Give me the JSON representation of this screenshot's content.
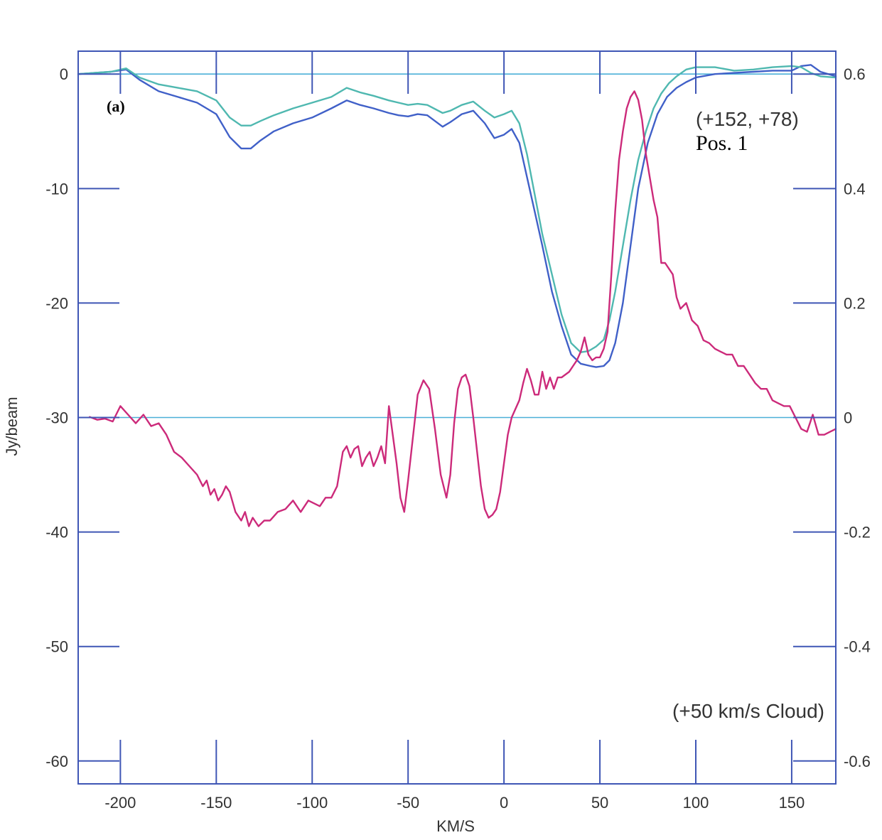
{
  "chart_data": {
    "type": "line",
    "panel_label": "(a)",
    "annotations": {
      "position": "(+152, +78)",
      "position_name": "Pos. 1",
      "cloud": "(+50 km/s Cloud)"
    },
    "xlabel": "KM/S",
    "ylabel": "Jy/beam",
    "xlim": [
      -222,
      173
    ],
    "ylim": [
      -62,
      2
    ],
    "y2lim": [
      -0.64,
      0.64
    ],
    "xticks": [
      -200,
      -150,
      -100,
      -50,
      0,
      50,
      100,
      150
    ],
    "xtick_labels": [
      "-200",
      "-150",
      "-100",
      "-50",
      "0",
      "50",
      "100",
      "150"
    ],
    "yticks": [
      0,
      -10,
      -20,
      -30,
      -40,
      -50,
      -60
    ],
    "ytick_labels": [
      "0",
      "-10",
      "-20",
      "-30",
      "-40",
      "-50",
      "-60"
    ],
    "y2ticks": [
      0.6,
      0.4,
      0.2,
      0,
      -0.2,
      -0.4,
      -0.6
    ],
    "y2tick_labels": [
      "0.6",
      "0.4",
      "0.2",
      "0",
      "-0.2",
      "-0.4",
      "-0.6"
    ],
    "reference_lines": [
      {
        "axis": "left",
        "y": 0
      },
      {
        "axis": "left",
        "y": -30
      }
    ],
    "grid": false,
    "colors": {
      "frame": "#3f56b5",
      "reference": "#4bb0d8",
      "blue_series": "#4060c8",
      "teal_series": "#4fb8b0",
      "magenta_series": "#cc2a7a"
    },
    "series": [
      {
        "color": "blue",
        "axis": "left",
        "x": [
          -222,
          -205,
          -197,
          -190,
          -180,
          -170,
          -160,
          -150,
          -143,
          -137,
          -132,
          -127,
          -120,
          -110,
          -100,
          -90,
          -82,
          -75,
          -68,
          -60,
          -55,
          -50,
          -45,
          -40,
          -32,
          -28,
          -22,
          -16,
          -10,
          -5,
          0,
          4,
          8,
          12,
          16,
          20,
          25,
          30,
          35,
          40,
          45,
          48,
          52,
          55,
          58,
          62,
          66,
          70,
          75,
          80,
          85,
          90,
          95,
          100,
          110,
          120,
          130,
          140,
          150,
          155,
          160,
          165,
          173
        ],
        "y": [
          0,
          0.2,
          0.4,
          -0.5,
          -1.5,
          -2,
          -2.5,
          -3.5,
          -5.5,
          -6.5,
          -6.5,
          -5.8,
          -5,
          -4.3,
          -3.8,
          -3,
          -2.3,
          -2.7,
          -3,
          -3.4,
          -3.6,
          -3.7,
          -3.5,
          -3.6,
          -4.6,
          -4.2,
          -3.5,
          -3.2,
          -4.3,
          -5.6,
          -5.3,
          -4.8,
          -6,
          -9,
          -12,
          -15,
          -19,
          -22,
          -24.5,
          -25.3,
          -25.5,
          -25.6,
          -25.5,
          -25,
          -23.5,
          -20,
          -15,
          -10,
          -6,
          -3.5,
          -2,
          -1.2,
          -0.7,
          -0.3,
          0,
          0.1,
          0.2,
          0.3,
          0.3,
          0.7,
          0.8,
          0.2,
          -0.2
        ]
      },
      {
        "color": "teal",
        "axis": "left",
        "x": [
          -222,
          -205,
          -197,
          -190,
          -180,
          -170,
          -160,
          -150,
          -143,
          -137,
          -132,
          -127,
          -120,
          -110,
          -100,
          -90,
          -82,
          -75,
          -68,
          -60,
          -55,
          -50,
          -45,
          -40,
          -32,
          -28,
          -22,
          -16,
          -10,
          -5,
          0,
          4,
          8,
          12,
          16,
          20,
          25,
          30,
          35,
          40,
          44,
          48,
          52,
          55,
          58,
          62,
          66,
          70,
          74,
          78,
          82,
          86,
          90,
          95,
          100,
          110,
          120,
          130,
          140,
          150,
          155,
          160,
          165,
          173
        ],
        "y": [
          0,
          0.2,
          0.5,
          -0.3,
          -0.9,
          -1.2,
          -1.5,
          -2.3,
          -3.8,
          -4.5,
          -4.5,
          -4.1,
          -3.6,
          -3,
          -2.5,
          -2,
          -1.2,
          -1.6,
          -1.9,
          -2.3,
          -2.5,
          -2.7,
          -2.6,
          -2.7,
          -3.4,
          -3.2,
          -2.7,
          -2.4,
          -3.2,
          -3.8,
          -3.5,
          -3.2,
          -4.3,
          -7,
          -10.5,
          -14,
          -17.5,
          -21,
          -23.5,
          -24.3,
          -24.2,
          -23.8,
          -23.2,
          -21.5,
          -19,
          -15,
          -11,
          -7.5,
          -5,
          -3,
          -1.7,
          -0.8,
          -0.2,
          0.4,
          0.6,
          0.6,
          0.3,
          0.4,
          0.6,
          0.7,
          0.6,
          0.1,
          -0.2,
          -0.3
        ]
      },
      {
        "color": "magenta",
        "axis": "right",
        "x": [
          -216,
          -212,
          -208,
          -204,
          -200,
          -196,
          -192,
          -188,
          -184,
          -180,
          -176,
          -172,
          -168,
          -164,
          -160,
          -157,
          -155,
          -153,
          -151,
          -149,
          -147,
          -145,
          -143,
          -140,
          -137,
          -135,
          -133,
          -131,
          -128,
          -125,
          -122,
          -118,
          -114,
          -110,
          -106,
          -102,
          -99,
          -96,
          -93,
          -90,
          -87,
          -84,
          -82,
          -80,
          -78,
          -76,
          -74,
          -72,
          -70,
          -68,
          -66,
          -64,
          -62,
          -60,
          -58,
          -56,
          -54,
          -52,
          -50,
          -48,
          -45,
          -42,
          -39,
          -36,
          -33,
          -30,
          -28,
          -26,
          -24,
          -22,
          -20,
          -18,
          -16,
          -14,
          -12,
          -10,
          -8,
          -6,
          -4,
          -2,
          0,
          2,
          4,
          6,
          8,
          10,
          12,
          14,
          16,
          18,
          20,
          22,
          24,
          26,
          28,
          30,
          32,
          34,
          36,
          38,
          40,
          42,
          44,
          46,
          48,
          50,
          52,
          54,
          56,
          58,
          60,
          62,
          64,
          66,
          68,
          70,
          72,
          74,
          76,
          78,
          80,
          82,
          84,
          86,
          88,
          90,
          92,
          95,
          98,
          101,
          104,
          107,
          110,
          113,
          116,
          119,
          122,
          125,
          128,
          131,
          134,
          137,
          140,
          143,
          146,
          149,
          152,
          155,
          158,
          161,
          164,
          167,
          170,
          173
        ],
        "y": [
          0.001,
          -0.004,
          -0.002,
          -0.007,
          0.02,
          0.005,
          -0.01,
          0.005,
          -0.015,
          -0.01,
          -0.03,
          -0.06,
          -0.07,
          -0.085,
          -0.1,
          -0.12,
          -0.11,
          -0.135,
          -0.125,
          -0.145,
          -0.135,
          -0.12,
          -0.13,
          -0.165,
          -0.18,
          -0.165,
          -0.19,
          -0.175,
          -0.19,
          -0.18,
          -0.18,
          -0.165,
          -0.16,
          -0.145,
          -0.165,
          -0.145,
          -0.15,
          -0.155,
          -0.14,
          -0.14,
          -0.12,
          -0.06,
          -0.05,
          -0.07,
          -0.055,
          -0.05,
          -0.085,
          -0.07,
          -0.06,
          -0.085,
          -0.07,
          -0.05,
          -0.08,
          0.02,
          -0.03,
          -0.08,
          -0.14,
          -0.165,
          -0.11,
          -0.05,
          0.04,
          0.065,
          0.05,
          -0.02,
          -0.1,
          -0.14,
          -0.1,
          -0.01,
          0.05,
          0.07,
          0.075,
          0.055,
          0.0,
          -0.06,
          -0.12,
          -0.16,
          -0.175,
          -0.17,
          -0.16,
          -0.13,
          -0.08,
          -0.03,
          0.0,
          0.015,
          0.03,
          0.06,
          0.085,
          0.065,
          0.04,
          0.04,
          0.08,
          0.05,
          0.07,
          0.05,
          0.07,
          0.07,
          0.075,
          0.08,
          0.09,
          0.1,
          0.115,
          0.14,
          0.11,
          0.1,
          0.105,
          0.105,
          0.12,
          0.15,
          0.25,
          0.36,
          0.45,
          0.5,
          0.54,
          0.56,
          0.57,
          0.555,
          0.52,
          0.46,
          0.42,
          0.38,
          0.35,
          0.27,
          0.27,
          0.26,
          0.25,
          0.21,
          0.19,
          0.2,
          0.17,
          0.16,
          0.135,
          0.13,
          0.12,
          0.115,
          0.11,
          0.11,
          0.09,
          0.09,
          0.075,
          0.06,
          0.05,
          0.05,
          0.03,
          0.025,
          0.02,
          0.02,
          0.0,
          -0.02,
          -0.025,
          0.005,
          -0.03,
          -0.03,
          -0.025,
          -0.02
        ]
      }
    ]
  }
}
